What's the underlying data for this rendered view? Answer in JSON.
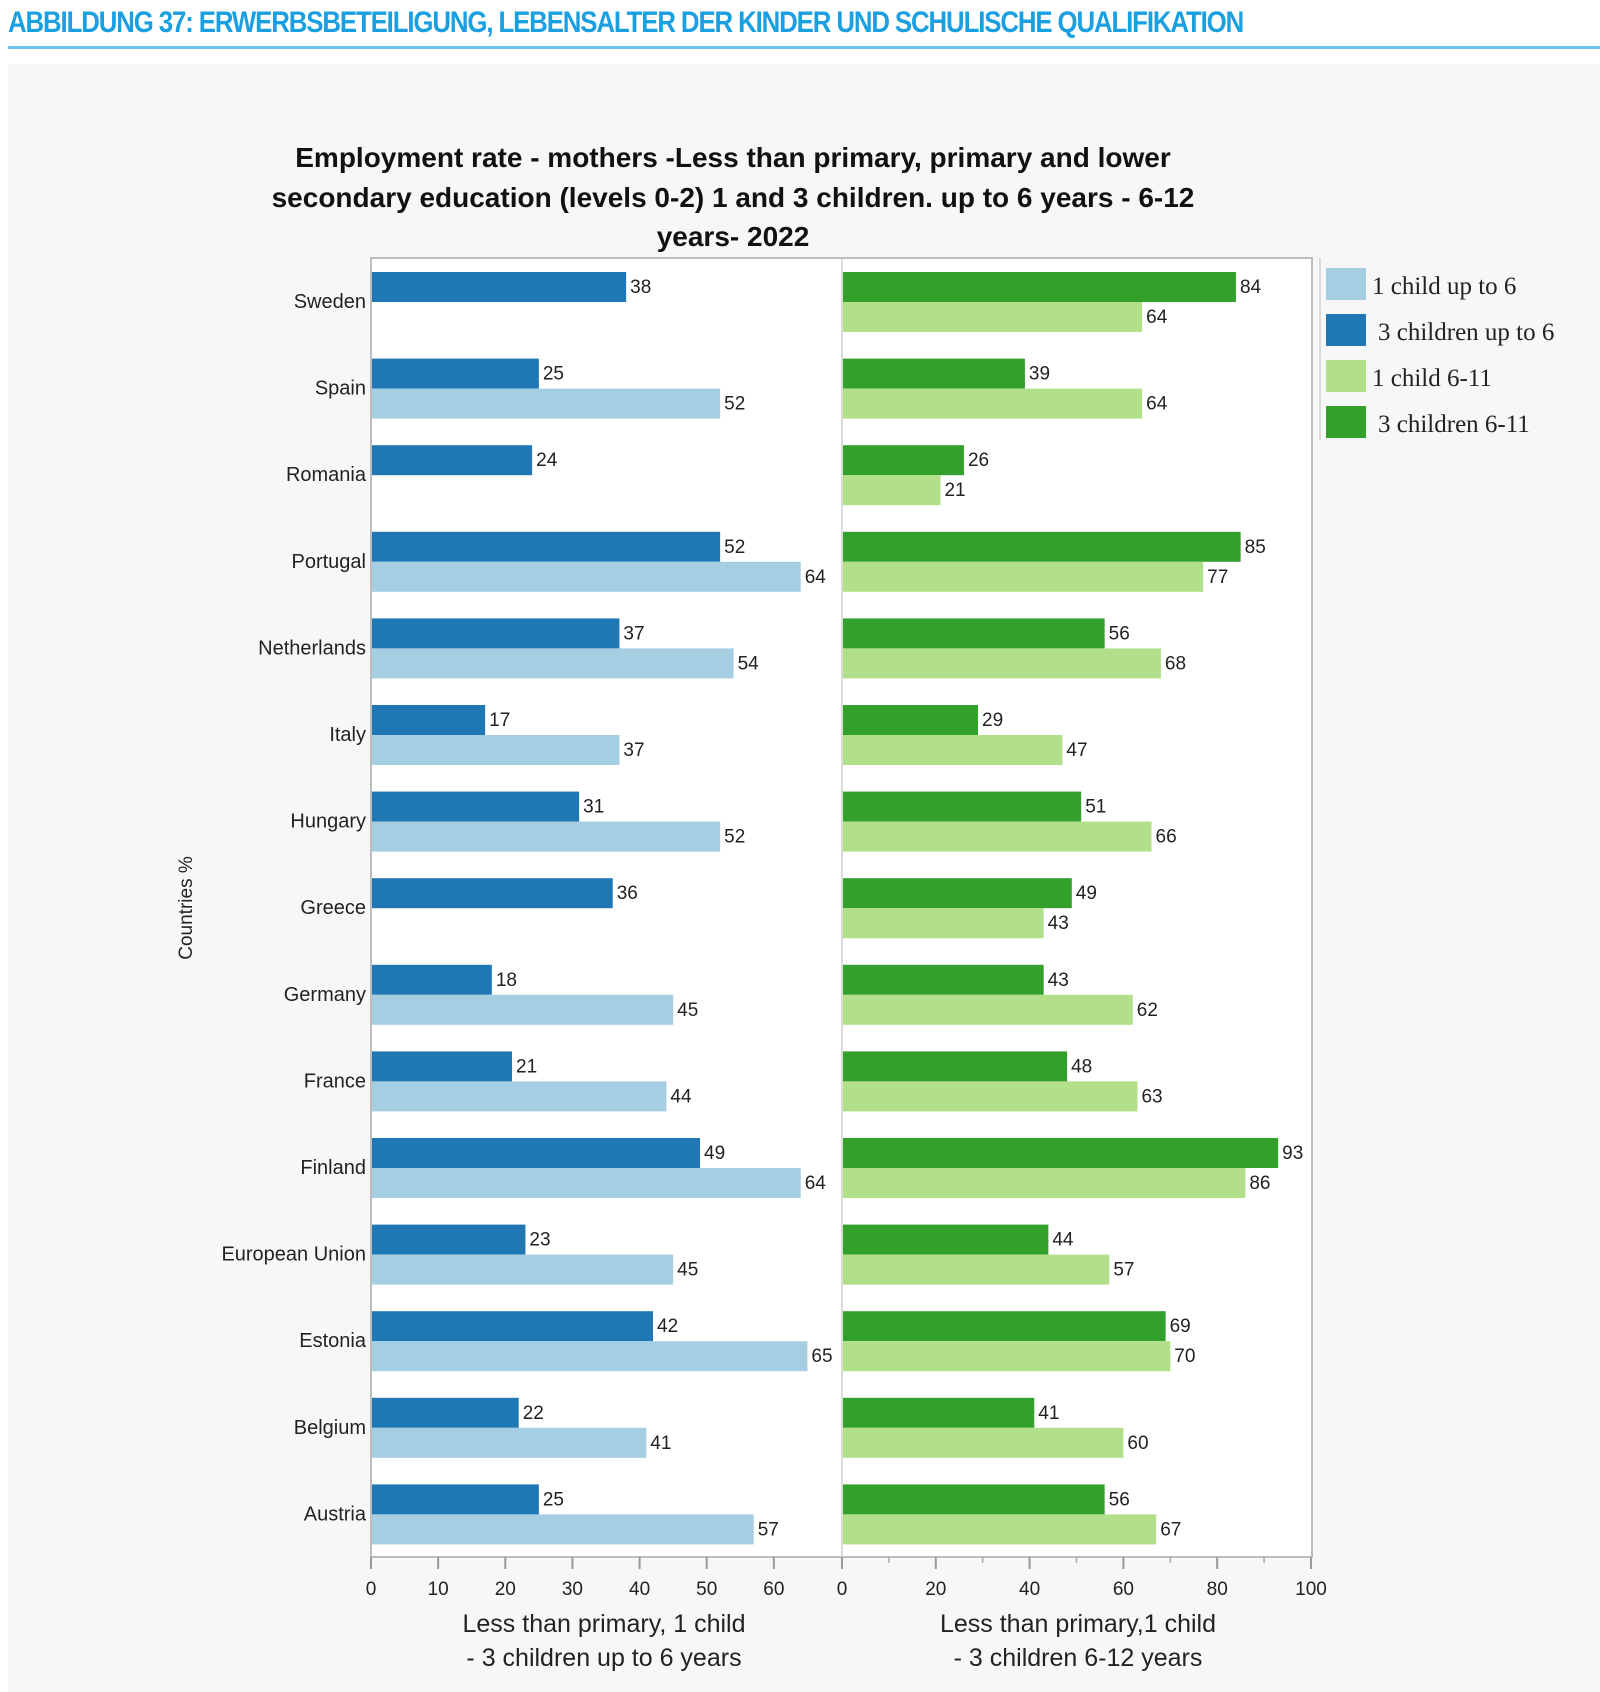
{
  "page": {
    "heading": "ABBILDUNG 37: ERWERBSBETEILIGUNG, LEBENSALTER DER KINDER UND SCHULISCHE QUALIFIKATION"
  },
  "colors": {
    "heading": "#1aa0e0",
    "one_child_up_to_6": "#a6cee3",
    "three_children_up_to_6": "#1f78b4",
    "one_child_6_11": "#b2df8a",
    "three_children_6_11": "#33a02c"
  },
  "chart_data": {
    "type": "bar",
    "orientation": "horizontal",
    "title_lines": [
      "Employment rate  - mothers -Less than primary, primary and lower",
      "secondary education (levels 0-2) 1 and  3 children. up to 6 years - 6-12",
      "years- 2022"
    ],
    "ylabel": "Countries %",
    "categories": [
      "Sweden",
      "Spain",
      "Romania",
      "Portugal",
      "Netherlands",
      "Italy",
      "Hungary",
      "Greece",
      "Germany",
      "France",
      "Finland",
      "European Union",
      "Estonia",
      "Belgium",
      "Austria"
    ],
    "panels": [
      {
        "xlabel_lines": [
          "Less than primary, 1 child",
          "- 3 children up to 6 years"
        ],
        "xlim": [
          0,
          70
        ],
        "ticks": [
          "0",
          "10",
          "20",
          "30",
          "40",
          "50",
          "60"
        ],
        "series": [
          {
            "name": "3 children up to 6",
            "color_key": "three_children_up_to_6",
            "values": [
              38,
              25,
              24,
              52,
              37,
              17,
              31,
              36,
              18,
              21,
              49,
              23,
              42,
              22,
              25
            ]
          },
          {
            "name": "1 child up to 6",
            "color_key": "one_child_up_to_6",
            "values": [
              null,
              52,
              null,
              64,
              54,
              37,
              52,
              null,
              45,
              44,
              64,
              45,
              65,
              41,
              57
            ]
          }
        ]
      },
      {
        "xlabel_lines": [
          "Less than primary,1 child",
          "- 3 children 6-12 years"
        ],
        "xlim": [
          0,
          100
        ],
        "ticks": [
          "0",
          "20",
          "40",
          "60",
          "80",
          "100"
        ],
        "minor_tick_step": 10,
        "series": [
          {
            "name": "3 children 6-11",
            "color_key": "three_children_6_11",
            "values": [
              84,
              39,
              26,
              85,
              56,
              29,
              51,
              49,
              43,
              48,
              93,
              44,
              69,
              41,
              56
            ]
          },
          {
            "name": "1 child 6-11",
            "color_key": "one_child_6_11",
            "values": [
              64,
              64,
              21,
              77,
              68,
              47,
              66,
              43,
              62,
              63,
              86,
              57,
              70,
              60,
              67
            ]
          }
        ]
      }
    ],
    "legend": {
      "position": "right",
      "entries": [
        {
          "label": "1 child up to 6",
          "color_key": "one_child_up_to_6"
        },
        {
          "label": "3 children up to 6",
          "color_key": "three_children_up_to_6"
        },
        {
          "label": "1 child 6-11",
          "color_key": "one_child_6_11"
        },
        {
          "label": "3 children 6-11",
          "color_key": "three_children_6_11"
        }
      ]
    },
    "grid": false
  }
}
